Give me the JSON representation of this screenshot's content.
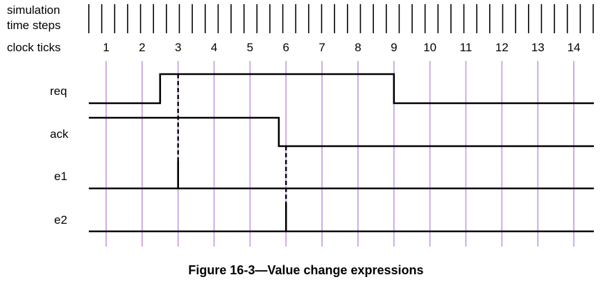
{
  "header_labels": {
    "simulation_line1": "simulation",
    "simulation_line2": "time steps",
    "clock_ticks": "clock ticks"
  },
  "clock_ticks": [
    "1",
    "2",
    "3",
    "4",
    "5",
    "6",
    "7",
    "8",
    "9",
    "10",
    "11",
    "12",
    "13",
    "14"
  ],
  "time_step_count": 40,
  "signals": [
    {
      "name": "req",
      "high_intervals": [
        [
          2.5,
          9.0
        ]
      ]
    },
    {
      "name": "ack",
      "high_intervals": [
        [
          0.5,
          5.8
        ]
      ]
    },
    {
      "name": "e1",
      "pulses": [
        3
      ]
    },
    {
      "name": "e2",
      "pulses": [
        6
      ]
    }
  ],
  "event_markers": [
    {
      "tick": 3,
      "from_signal": "req",
      "to_signal": "e1"
    },
    {
      "tick": 6,
      "from_signal": "ack",
      "to_signal": "e2"
    }
  ],
  "colors": {
    "clock_line": "#c8a2e8",
    "waveform": "#000000",
    "background": "#ffffff"
  },
  "caption": "Figure 16-3—Value change expressions"
}
